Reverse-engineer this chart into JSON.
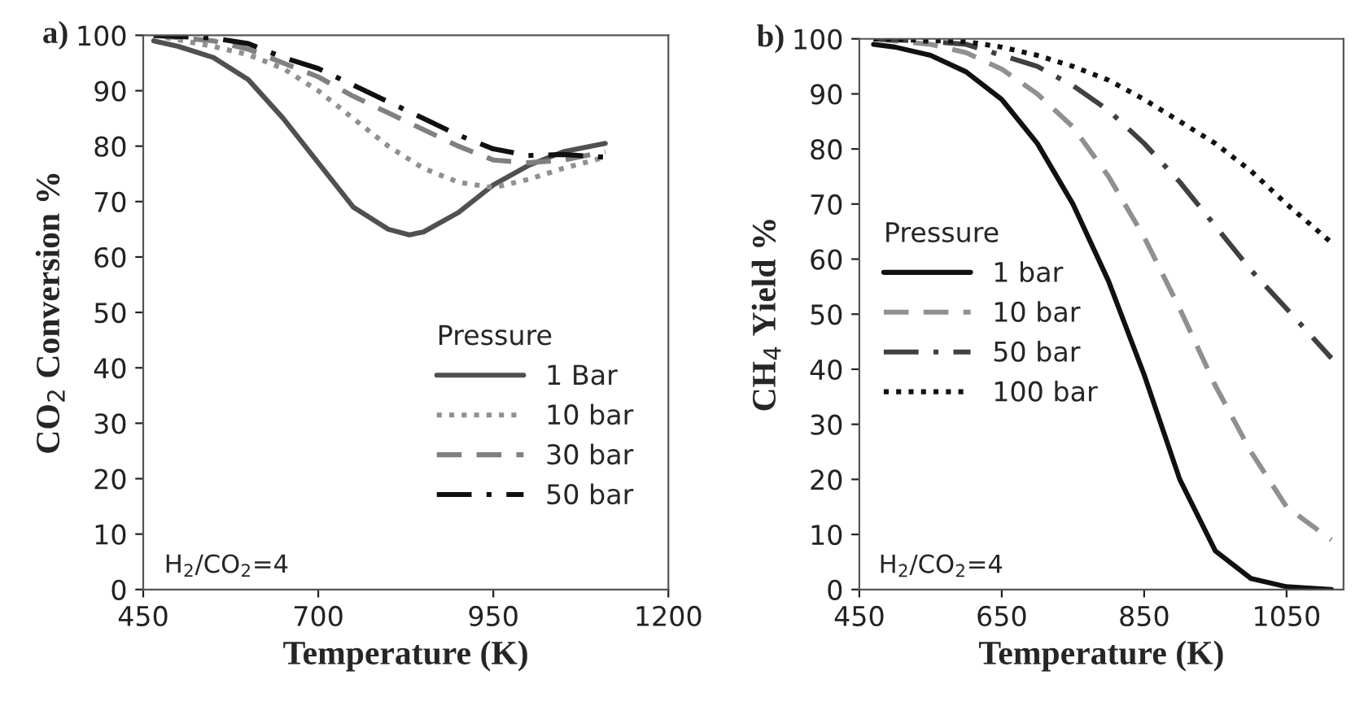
{
  "chart_data": [
    {
      "type": "line",
      "title": "a)",
      "xlabel": "Temperature (K)",
      "ylabel": "CO$_{2}$ Conversion %",
      "legend_title": "Pressure",
      "legend": "bottom right",
      "grid": false,
      "xlim": [
        450,
        1200
      ],
      "xticks": [
        450,
        700,
        950,
        1200
      ],
      "ylim": [
        0,
        100
      ],
      "yticks": [
        0,
        10,
        20,
        30,
        40,
        50,
        60,
        70,
        80,
        90,
        100
      ],
      "annotations": [
        "H$_{2}$/CO$_{2}$=4"
      ],
      "series": [
        {
          "name": "1 Bar",
          "color": "#505050",
          "line_style": "solid",
          "x": [
            465,
            500,
            550,
            600,
            650,
            700,
            750,
            800,
            830,
            850,
            900,
            950,
            1000,
            1050,
            1110
          ],
          "values": [
            99,
            98,
            96,
            92,
            85,
            77,
            69,
            65,
            64,
            64.5,
            68,
            73,
            76.5,
            79,
            80.5
          ]
        },
        {
          "name": "10 bar",
          "color": "#909090",
          "line_style": "dotted",
          "x": [
            465,
            550,
            600,
            650,
            700,
            750,
            800,
            850,
            900,
            950,
            1000,
            1050,
            1110
          ],
          "values": [
            100,
            98,
            96.5,
            94,
            90,
            85,
            80,
            76,
            73.5,
            72.5,
            74,
            76,
            78
          ]
        },
        {
          "name": "30 bar",
          "color": "#808080",
          "line_style": "dashed",
          "x": [
            465,
            550,
            600,
            650,
            700,
            750,
            800,
            850,
            900,
            950,
            1000,
            1050,
            1110
          ],
          "values": [
            100,
            99,
            97.5,
            95,
            92.5,
            89,
            86,
            83,
            80,
            77.5,
            77,
            77.5,
            79
          ]
        },
        {
          "name": "50 bar",
          "color": "#101010",
          "line_style": "dashdot",
          "x": [
            465,
            550,
            600,
            650,
            700,
            750,
            800,
            850,
            900,
            950,
            1000,
            1050,
            1110
          ],
          "values": [
            100,
            99.5,
            98.5,
            96,
            94,
            91,
            88,
            85,
            82,
            79.5,
            78.3,
            78.5,
            78
          ]
        }
      ]
    },
    {
      "type": "line",
      "title": "b)",
      "xlabel": "Temperature (K)",
      "ylabel": "CH$_{4}$ Yield %",
      "legend_title": "Pressure",
      "legend": "left",
      "grid": false,
      "xlim": [
        450,
        1130
      ],
      "xticks": [
        450,
        650,
        850,
        1050
      ],
      "ylim": [
        0,
        100
      ],
      "yticks": [
        0,
        10,
        20,
        30,
        40,
        50,
        60,
        70,
        80,
        90,
        100
      ],
      "annotations": [
        "H$_{2}$/CO$_{2}$=4"
      ],
      "series": [
        {
          "name": "1 bar",
          "color": "#111111",
          "line_style": "solid",
          "x": [
            470,
            500,
            550,
            600,
            650,
            700,
            750,
            800,
            850,
            900,
            950,
            1000,
            1050,
            1113
          ],
          "values": [
            99,
            98.5,
            97,
            94,
            89,
            81,
            70,
            56,
            39,
            20,
            7,
            2,
            0.5,
            0
          ]
        },
        {
          "name": "10 bar",
          "color": "#909090",
          "line_style": "dashed",
          "x": [
            470,
            550,
            600,
            650,
            700,
            750,
            800,
            850,
            900,
            950,
            1000,
            1050,
            1113
          ],
          "values": [
            100,
            99,
            97.5,
            94.5,
            90,
            84,
            75,
            64,
            51,
            37,
            25,
            15,
            9
          ]
        },
        {
          "name": "50 bar",
          "color": "#404040",
          "line_style": "dashdot",
          "x": [
            470,
            550,
            600,
            650,
            700,
            750,
            800,
            850,
            900,
            950,
            1000,
            1050,
            1113
          ],
          "values": [
            100,
            99.5,
            99,
            97,
            95,
            91.5,
            87,
            81,
            74,
            66,
            58,
            51,
            42
          ]
        },
        {
          "name": "100 bar",
          "color": "#111111",
          "line_style": "dotted",
          "x": [
            470,
            600,
            650,
            700,
            750,
            800,
            850,
            900,
            950,
            1000,
            1050,
            1113
          ],
          "values": [
            100,
            99.5,
            98.5,
            97,
            95,
            92.5,
            89,
            85,
            81,
            76,
            70,
            63
          ]
        }
      ]
    }
  ]
}
